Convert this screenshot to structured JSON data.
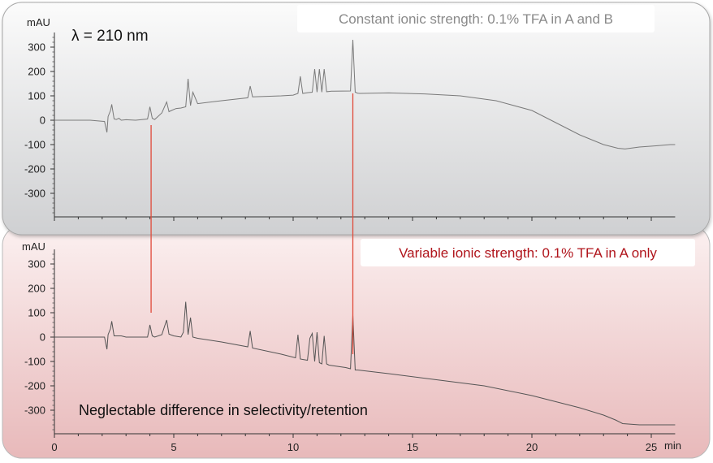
{
  "chart_data": [
    {
      "type": "line",
      "panel": "top",
      "label": "Constant ionic strength: 0.1% TFA in A and B",
      "wavelength": "λ = 210 nm",
      "ylabel": "mAU",
      "ylim": [
        -400,
        360
      ],
      "xlim": [
        0,
        26
      ],
      "yticks": [
        300,
        200,
        100,
        0,
        -100,
        -200,
        -300
      ],
      "grid": false,
      "series": [
        {
          "x": [
            0,
            1.5,
            2.1,
            2.2,
            2.25,
            2.35,
            2.4,
            2.5,
            2.6,
            2.7,
            2.8,
            3.0,
            3.4,
            3.9,
            4.0,
            4.1,
            4.2,
            4.5,
            4.7,
            4.8,
            4.9,
            5.1,
            5.3,
            5.5,
            5.6,
            5.7,
            5.8,
            6.0,
            7.0,
            8.1,
            8.2,
            8.3,
            9.5,
            10.0,
            10.2,
            10.3,
            10.4,
            10.6,
            10.8,
            10.9,
            11.0,
            11.1,
            11.2,
            11.3,
            11.4,
            11.5,
            11.6,
            11.7,
            12.4,
            12.5,
            12.6,
            12.7,
            12.8,
            14.0,
            15.5,
            17.0,
            18.5,
            20.0,
            21.0,
            22.0,
            23.0,
            23.4,
            23.6,
            23.9,
            24.5,
            25.2,
            25.8,
            26.0
          ],
          "values": [
            0,
            0,
            -5,
            -50,
            15,
            40,
            65,
            5,
            3,
            8,
            0,
            2,
            0,
            5,
            55,
            8,
            3,
            30,
            75,
            35,
            40,
            48,
            50,
            55,
            170,
            60,
            115,
            68,
            80,
            92,
            140,
            96,
            100,
            103,
            110,
            180,
            110,
            113,
            115,
            210,
            115,
            210,
            115,
            210,
            117,
            118,
            119,
            119,
            120,
            330,
            115,
            111,
            110,
            112,
            108,
            100,
            80,
            40,
            -10,
            -60,
            -100,
            -110,
            -115,
            -118,
            -110,
            -105,
            -100,
            -100
          ]
        }
      ]
    },
    {
      "type": "line",
      "panel": "bottom",
      "label": "Variable ionic strength: 0.1% TFA in A only",
      "note": "Neglectable difference in selectivity/retention",
      "ylabel": "mAU",
      "ylim": [
        -400,
        360
      ],
      "xlim": [
        0,
        26
      ],
      "xticks": [
        0,
        5,
        10,
        15,
        20,
        25
      ],
      "xunit": "min",
      "yticks": [
        300,
        200,
        100,
        0,
        -100,
        -200,
        -300
      ],
      "grid": false,
      "series": [
        {
          "x": [
            0,
            1.5,
            2.1,
            2.2,
            2.25,
            2.35,
            2.4,
            2.5,
            2.6,
            2.8,
            3.0,
            3.9,
            4.0,
            4.1,
            4.2,
            4.5,
            4.7,
            4.8,
            5.0,
            5.3,
            5.4,
            5.5,
            5.6,
            5.7,
            5.8,
            6.0,
            7.0,
            8.1,
            8.2,
            8.3,
            9.5,
            10.1,
            10.2,
            10.3,
            10.6,
            10.7,
            10.8,
            10.9,
            11.0,
            11.1,
            11.2,
            11.3,
            11.4,
            11.5,
            12.2,
            12.4,
            12.5,
            12.6,
            12.7,
            14.0,
            16.0,
            18.0,
            20.0,
            22.0,
            23.0,
            23.5,
            23.8,
            24.5,
            25.5,
            26.0
          ],
          "values": [
            0,
            0,
            0,
            -50,
            10,
            35,
            65,
            5,
            5,
            5,
            0,
            0,
            50,
            5,
            0,
            10,
            70,
            12,
            5,
            0,
            20,
            145,
            10,
            80,
            0,
            -5,
            -20,
            -40,
            25,
            -45,
            -70,
            -85,
            10,
            -90,
            -95,
            -5,
            15,
            -100,
            20,
            -105,
            -110,
            5,
            -110,
            -115,
            -125,
            -130,
            90,
            -135,
            -135,
            -150,
            -175,
            -200,
            -240,
            -290,
            -320,
            -340,
            -355,
            -360,
            -360,
            -360
          ]
        }
      ]
    }
  ]
}
